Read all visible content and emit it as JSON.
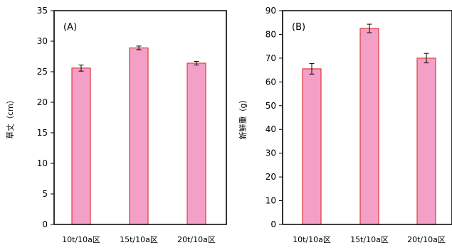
{
  "chart_data": [
    {
      "type": "bar",
      "panel_label": "(A)",
      "categories": [
        "10t/10a区",
        "15t/10a区",
        "20t/10a区"
      ],
      "values": [
        25.6,
        28.9,
        26.4
      ],
      "errors": [
        0.5,
        0.3,
        0.3
      ],
      "ylabel": "草丈（cm）",
      "ylim": [
        0,
        35
      ],
      "yticks": [
        "0",
        "5",
        "10",
        "15",
        "20",
        "25",
        "30",
        "35"
      ],
      "grid": false,
      "bar_color": "#f4a0c6",
      "bar_edge_color": "#e03a3a"
    },
    {
      "type": "bar",
      "panel_label": "(B)",
      "categories": [
        "10t/10a区",
        "15t/10a区",
        "20t/10a区"
      ],
      "values": [
        65.5,
        82.5,
        70.0
      ],
      "errors": [
        2.2,
        1.8,
        2.0
      ],
      "ylabel": "新鮮重（g）",
      "ylim": [
        0,
        90
      ],
      "yticks": [
        "0",
        "10",
        "20",
        "30",
        "40",
        "50",
        "60",
        "70",
        "80",
        "90"
      ],
      "grid": false,
      "bar_color": "#f4a0c6",
      "bar_edge_color": "#e03a3a"
    }
  ]
}
